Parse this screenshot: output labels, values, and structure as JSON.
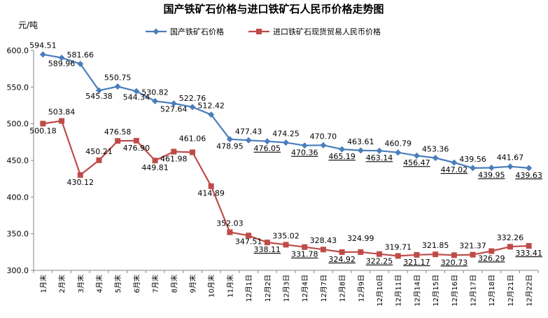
{
  "chart_data": {
    "type": "line",
    "title": "国产铁矿石价格与进口铁矿石人民币价格走势图",
    "ylabel": "元/吨",
    "ylim": [
      300,
      600
    ],
    "yticks": [
      "300.0",
      "350.0",
      "400.0",
      "450.0",
      "500.0",
      "550.0",
      "600.0"
    ],
    "categories": [
      "1月末",
      "2月末",
      "3月末",
      "4月末",
      "5月末",
      "6月末",
      "7月末",
      "8月末",
      "9月末",
      "10月末",
      "11月末",
      "12月1日",
      "12月2日",
      "12月3日",
      "12月4日",
      "12月7日",
      "12月8日",
      "12月9日",
      "12月10日",
      "12月11日",
      "12月14日",
      "12月15日",
      "12月16日",
      "12月17日",
      "12月18日",
      "12月21日",
      "12月22日"
    ],
    "series": [
      {
        "name": "国产铁矿石价格",
        "color": "#4A7EBB",
        "marker": "diamond",
        "values": [
          594.51,
          589.96,
          581.66,
          545.38,
          550.75,
          544.34,
          530.82,
          527.64,
          522.76,
          512.42,
          478.95,
          477.43,
          476.05,
          474.25,
          470.36,
          470.7,
          465.19,
          463.61,
          463.14,
          460.79,
          456.47,
          453.36,
          447.02,
          439.56,
          439.95,
          441.67,
          439.63
        ],
        "labels": [
          "594.51",
          "589.96",
          "581.66",
          "545.38",
          "550.75",
          "544.34",
          "530.82",
          "527.64",
          "522.76",
          "512.42",
          "478.95",
          "477.43",
          "476.05",
          "474.25",
          "470.36",
          "470.70",
          "465.19",
          "463.61",
          "463.14",
          "460.79",
          "456.47",
          "453.36",
          "447.02",
          "439.56",
          "439.95",
          "441.67",
          "439.63"
        ]
      },
      {
        "name": "进口铁矿石现货贸易人民币价格",
        "color": "#BE4B48",
        "marker": "square",
        "values": [
          500.18,
          503.84,
          430.12,
          450.21,
          476.58,
          476.9,
          449.81,
          461.98,
          461.06,
          414.89,
          352.03,
          347.51,
          338.11,
          335.02,
          331.78,
          328.43,
          324.92,
          324.99,
          322.25,
          319.71,
          321.17,
          321.85,
          320.73,
          321.37,
          326.29,
          332.26,
          333.41
        ],
        "labels": [
          "500.18",
          "503.84",
          "430.12",
          "450.21",
          "476.58",
          "476.90",
          "449.81",
          "461.98",
          "461.06",
          "414.89",
          "352.03",
          "347.51",
          "338.11",
          "335.02",
          "331.78",
          "328.43",
          "324.92",
          "324.99",
          "322.25",
          "319.71",
          "321.17",
          "321.85",
          "320.73",
          "321.37",
          "326.29",
          "332.26",
          "333.41"
        ]
      }
    ],
    "legend_position": "top-right",
    "grid": false
  }
}
